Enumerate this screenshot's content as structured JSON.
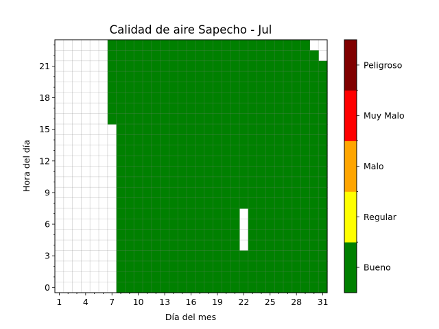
{
  "chart_data": {
    "type": "heatmap",
    "title": "Calidad de aire Sapecho - Jul",
    "xlabel": "Día del mes",
    "ylabel": "Hora del día",
    "x_range": [
      1,
      31
    ],
    "y_range": [
      0,
      23
    ],
    "x_ticks": [
      "1",
      "4",
      "7",
      "10",
      "13",
      "16",
      "19",
      "22",
      "25",
      "28",
      "31"
    ],
    "y_ticks": [
      "0",
      "3",
      "6",
      "9",
      "12",
      "15",
      "18",
      "21"
    ],
    "grid": true,
    "value_meaning": "Bueno for every measured hour; the hours listed in missing_data are blank",
    "missing_data": [
      {
        "days": [
          1,
          6
        ],
        "hours": [
          0,
          23
        ]
      },
      {
        "days": [
          7,
          7
        ],
        "hours": [
          0,
          15
        ]
      },
      {
        "days": [
          22,
          22
        ],
        "hours": [
          4,
          7
        ]
      },
      {
        "days": [
          30,
          30
        ],
        "hours": [
          23,
          23
        ]
      },
      {
        "days": [
          31,
          31
        ],
        "hours": [
          22,
          23
        ]
      }
    ],
    "colorbar": {
      "categories": [
        "Bueno",
        "Regular",
        "Malo",
        "Muy Malo",
        "Peligroso"
      ],
      "colors": [
        "#008000",
        "#ffff00",
        "#ffa500",
        "#ff0000",
        "#800000"
      ]
    }
  }
}
